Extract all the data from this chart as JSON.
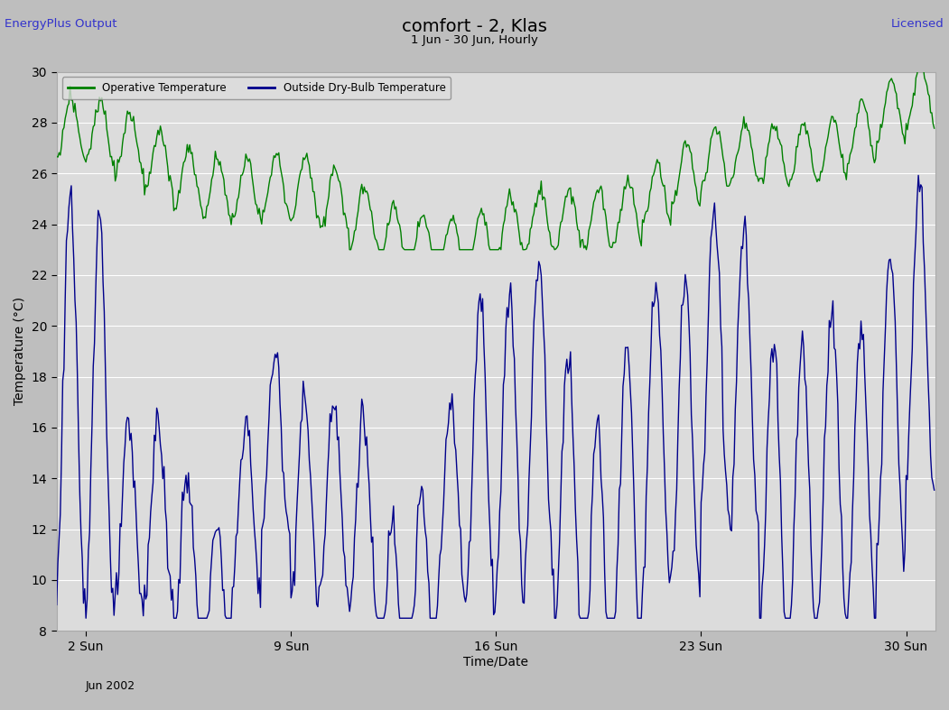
{
  "title": "comfort - 2, Klas",
  "subtitle": "1 Jun - 30 Jun, Hourly",
  "left_label": "EnergyPlus Output",
  "right_label": "Licensed",
  "ylabel": "Temperature (°C)",
  "xlabel": "Time/Date",
  "date_label": "Jun 2002",
  "xtick_labels": [
    "2 Sun",
    "9 Sun",
    "16 Sun",
    "23 Sun",
    "30 Sun"
  ],
  "xtick_positions": [
    24,
    192,
    360,
    528,
    696
  ],
  "ytick_min": 8,
  "ytick_max": 30,
  "ytick_step": 2,
  "green_color": "#008000",
  "blue_color": "#00008B",
  "fig_bg_color": "#bebebe",
  "plot_bg_color": "#dcdcdc",
  "grid_color": "#ffffff",
  "legend_green": "Operative Temperature",
  "legend_blue": "Outside Dry-Bulb Temperature",
  "line_width": 1.0
}
